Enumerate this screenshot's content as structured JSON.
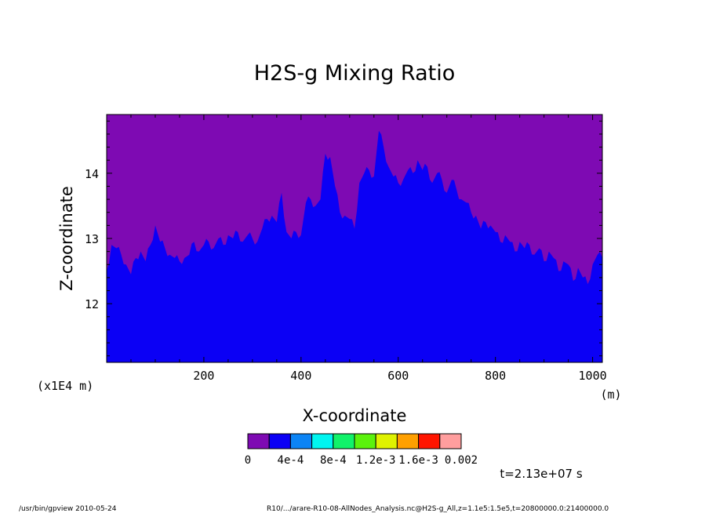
{
  "chart_data": {
    "type": "area",
    "title": "H2S-g Mixing Ratio",
    "xlabel": "X-coordinate",
    "ylabel": "Z-coordinate",
    "x_unit": "(m)",
    "y_scale_note": "(x1E4 m)",
    "xlim": [
      0,
      1020
    ],
    "ylim": [
      11.1,
      14.9
    ],
    "x_ticks": [
      200,
      400,
      600,
      800,
      1000
    ],
    "y_ticks": [
      12,
      13,
      14
    ],
    "x_tick_labels": [
      "200",
      "400",
      "600",
      "800",
      "1000"
    ],
    "y_tick_labels": [
      "12",
      "13",
      "14"
    ],
    "background_level_color": "#7e0ab3",
    "filled_level_color": "#0b00f5",
    "boundary": {
      "x": [
        0,
        10,
        20,
        30,
        40,
        50,
        60,
        70,
        80,
        90,
        100,
        110,
        120,
        130,
        140,
        150,
        160,
        170,
        180,
        190,
        200,
        210,
        220,
        230,
        240,
        250,
        260,
        270,
        280,
        290,
        300,
        310,
        320,
        330,
        340,
        350,
        360,
        370,
        380,
        390,
        400,
        410,
        420,
        430,
        440,
        450,
        460,
        470,
        480,
        490,
        500,
        510,
        520,
        530,
        540,
        550,
        560,
        570,
        580,
        590,
        600,
        610,
        620,
        630,
        640,
        650,
        660,
        670,
        680,
        690,
        700,
        710,
        720,
        730,
        740,
        750,
        760,
        770,
        780,
        790,
        800,
        810,
        820,
        830,
        840,
        850,
        860,
        870,
        880,
        890,
        900,
        910,
        920,
        930,
        940,
        950,
        960,
        970,
        980,
        990,
        1000,
        1010,
        1020
      ],
      "z": [
        12.5,
        12.9,
        12.85,
        12.75,
        12.6,
        12.45,
        12.7,
        12.8,
        12.65,
        12.9,
        13.2,
        12.95,
        12.85,
        12.75,
        12.7,
        12.65,
        12.7,
        12.75,
        12.95,
        12.8,
        12.9,
        12.95,
        12.85,
        13.0,
        12.9,
        13.05,
        13.0,
        13.1,
        12.95,
        13.05,
        13.0,
        12.95,
        13.15,
        13.3,
        13.35,
        13.25,
        13.7,
        13.1,
        13.0,
        13.1,
        13.05,
        13.55,
        13.6,
        13.5,
        13.6,
        14.3,
        14.25,
        13.8,
        13.4,
        13.35,
        13.3,
        13.15,
        13.85,
        14.0,
        14.05,
        13.95,
        14.65,
        14.4,
        14.1,
        13.95,
        13.85,
        13.9,
        14.05,
        14.0,
        14.2,
        14.05,
        14.1,
        13.85,
        14.0,
        13.9,
        13.7,
        13.9,
        13.75,
        13.6,
        13.55,
        13.4,
        13.35,
        13.15,
        13.25,
        13.2,
        13.1,
        12.95,
        13.05,
        12.95,
        12.8,
        12.95,
        12.85,
        12.9,
        12.75,
        12.85,
        12.65,
        12.8,
        12.7,
        12.5,
        12.65,
        12.6,
        12.35,
        12.55,
        12.4,
        12.3,
        12.6,
        12.75,
        12.7
      ]
    },
    "colorbar": {
      "colors": [
        "#7e0ab3",
        "#0b00f5",
        "#0c84f5",
        "#00f5f0",
        "#11f26a",
        "#5bf20d",
        "#dff200",
        "#ffa000",
        "#ff1500",
        "#ff9e9e"
      ],
      "labels": [
        "0",
        "4e-4",
        "8e-4",
        "1.2e-3",
        "1.6e-3",
        "0.002"
      ]
    },
    "time_label": "t=2.13e+07 s"
  },
  "footer": {
    "left": "/usr/bin/gpview  2010-05-24",
    "right": "R10/.../arare-R10-08-AllNodes_Analysis.nc@H2S-g_All,z=1.1e5:1.5e5,t=20800000.0:21400000.0"
  }
}
